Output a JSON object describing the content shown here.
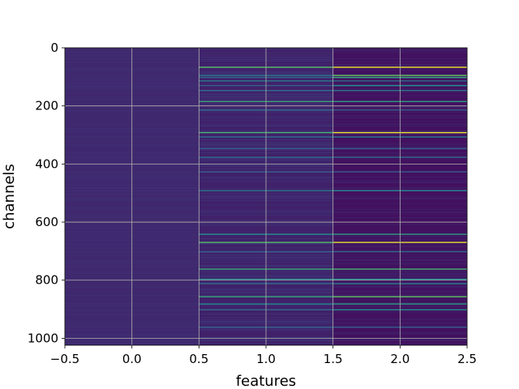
{
  "chart_data": {
    "type": "heatmap",
    "title": "",
    "xlabel": "features",
    "ylabel": "channels",
    "xlim": [
      -0.5,
      2.5
    ],
    "ylim": [
      1024,
      0
    ],
    "y_inverted": true,
    "x_ticks": [
      -0.5,
      0.0,
      0.5,
      1.0,
      1.5,
      2.0,
      2.5
    ],
    "x_tick_labels": [
      "−0.5",
      "0.0",
      "0.5",
      "1.0",
      "1.5",
      "2.0",
      "2.5"
    ],
    "y_ticks": [
      0,
      200,
      400,
      600,
      800,
      1000
    ],
    "y_tick_labels": [
      "0",
      "200",
      "400",
      "600",
      "800",
      "1000"
    ],
    "grid": true,
    "colormap": "viridis",
    "n_rows": 1024,
    "n_cols": 3,
    "column_base_values": [
      0.12,
      0.1,
      0.05
    ],
    "bright_rows": [
      {
        "row": 65,
        "values": [
          0.12,
          0.72,
          0.97
        ]
      },
      {
        "row": 93,
        "values": [
          0.12,
          0.4,
          0.75
        ]
      },
      {
        "row": 100,
        "values": [
          0.12,
          0.35,
          0.6
        ]
      },
      {
        "row": 112,
        "values": [
          0.12,
          0.4,
          0.35
        ]
      },
      {
        "row": 128,
        "values": [
          0.12,
          0.3,
          0.5
        ]
      },
      {
        "row": 145,
        "values": [
          0.12,
          0.35,
          0.4
        ]
      },
      {
        "row": 183,
        "values": [
          0.12,
          0.6,
          0.55
        ]
      },
      {
        "row": 212,
        "values": [
          0.12,
          0.35,
          0.3
        ]
      },
      {
        "row": 290,
        "values": [
          0.12,
          0.65,
          0.97
        ]
      },
      {
        "row": 305,
        "values": [
          0.12,
          0.35,
          0.4
        ]
      },
      {
        "row": 345,
        "values": [
          0.12,
          0.3,
          0.3
        ]
      },
      {
        "row": 375,
        "values": [
          0.12,
          0.35,
          0.35
        ]
      },
      {
        "row": 425,
        "values": [
          0.12,
          0.3,
          0.3
        ]
      },
      {
        "row": 490,
        "values": [
          0.12,
          0.4,
          0.45
        ]
      },
      {
        "row": 640,
        "values": [
          0.12,
          0.5,
          0.55
        ]
      },
      {
        "row": 668,
        "values": [
          0.12,
          0.7,
          0.95
        ]
      },
      {
        "row": 700,
        "values": [
          0.12,
          0.3,
          0.35
        ]
      },
      {
        "row": 760,
        "values": [
          0.12,
          0.6,
          0.65
        ]
      },
      {
        "row": 795,
        "values": [
          0.12,
          0.45,
          0.5
        ]
      },
      {
        "row": 810,
        "values": [
          0.12,
          0.35,
          0.4
        ]
      },
      {
        "row": 855,
        "values": [
          0.12,
          0.6,
          0.75
        ]
      },
      {
        "row": 880,
        "values": [
          0.12,
          0.45,
          0.55
        ]
      },
      {
        "row": 900,
        "values": [
          0.12,
          0.35,
          0.5
        ]
      },
      {
        "row": 960,
        "values": [
          0.12,
          0.3,
          0.3
        ]
      }
    ]
  }
}
